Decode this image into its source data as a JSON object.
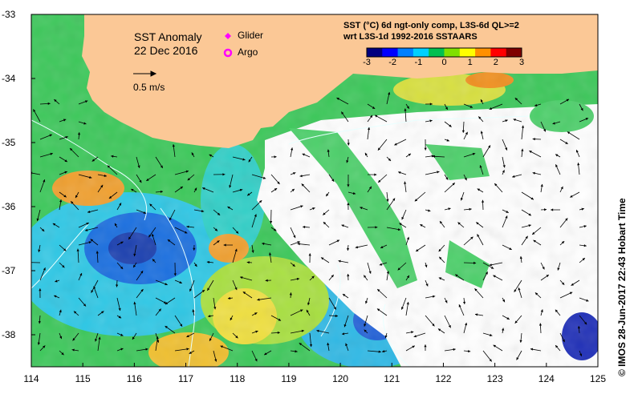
{
  "map": {
    "title": "SST Anomaly",
    "date": "22 Dec 2016",
    "vector_scale_label": "0.5 m/s",
    "legend": {
      "glider_label": "Glider",
      "argo_label": "Argo",
      "glider_color": "#ff00ff",
      "argo_color": "#ff00ff"
    },
    "product_line1": "SST (°C) 6d ngt-only comp, L3S-6d QL>=2",
    "product_line2": "wrt L3S-1d 1992-2016 SSTAARS",
    "colorbar_ticks": [
      "-3",
      "-2",
      "-1",
      "0",
      "1",
      "2",
      "3"
    ],
    "colorbar_colors": [
      "#00007f",
      "#0000ff",
      "#0080ff",
      "#00d0ff",
      "#00c050",
      "#80e000",
      "#ffff00",
      "#ff9000",
      "#ff0000",
      "#7f0000"
    ],
    "credit": "© IMOS 28-Jun-2017 22:43 Hobart Time",
    "x_ticks": [
      "114",
      "115",
      "116",
      "117",
      "118",
      "119",
      "120",
      "121",
      "122",
      "123",
      "124",
      "125"
    ],
    "y_ticks": [
      "-33",
      "-34",
      "-35",
      "-36",
      "-37",
      "-38"
    ],
    "land_color": "#fbc896",
    "no_data_color": "#ffffff"
  }
}
